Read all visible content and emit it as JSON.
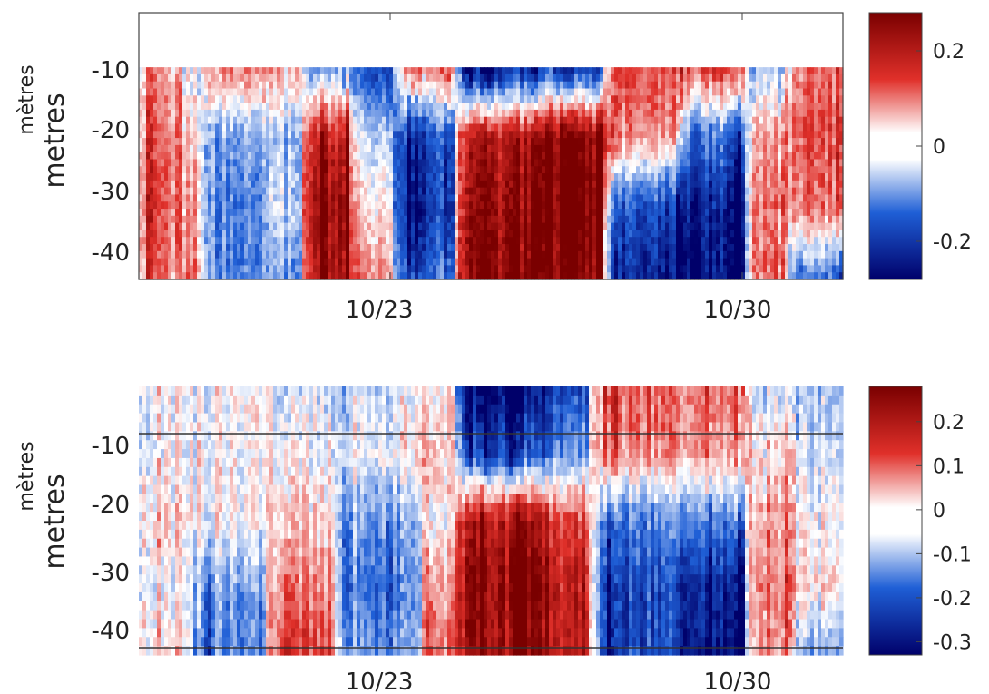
{
  "chart_data": [
    {
      "type": "heatmap",
      "panel": "top",
      "ylabel_fr": "mètres",
      "ylabel_en": "metres",
      "yticks": [
        "-10",
        "-20",
        "-30",
        "-40"
      ],
      "ytick_values": [
        -10,
        -20,
        -30,
        -40
      ],
      "xticks": [
        "10/23",
        "10/30"
      ],
      "x_range": [
        "10/18",
        "10/31"
      ],
      "y_range": [
        -44,
        0
      ],
      "data_depth_range": [
        -44,
        -9
      ],
      "colorbar": {
        "ticks": [
          "0.2",
          "0",
          "-0.2"
        ],
        "tick_values": [
          0.2,
          0,
          -0.2
        ],
        "range": [
          -0.28,
          0.28
        ],
        "colors": [
          "#00006a",
          "#1f5fd6",
          "#ffffff",
          "#e0302a",
          "#7a0000"
        ]
      },
      "time_segments": [
        {
          "t": [
            0.0,
            0.06
          ],
          "profile": [
            0.2,
            0.3,
            0.4,
            0.3
          ]
        },
        {
          "t": [
            0.06,
            0.09
          ],
          "profile": [
            -0.1,
            0.1,
            0.2,
            0.3
          ]
        },
        {
          "t": [
            0.09,
            0.18
          ],
          "profile": [
            0.3,
            -0.3,
            -0.4,
            -0.4
          ]
        },
        {
          "t": [
            0.18,
            0.23
          ],
          "profile": [
            0.2,
            -0.2,
            -0.1,
            -0.3
          ]
        },
        {
          "t": [
            0.23,
            0.3
          ],
          "profile": [
            -0.3,
            0.6,
            0.8,
            0.7
          ]
        },
        {
          "t": [
            0.3,
            0.36
          ],
          "profile": [
            -0.6,
            -0.1,
            0.1,
            0.3
          ]
        },
        {
          "t": [
            0.36,
            0.45
          ],
          "profile": [
            0.3,
            -0.6,
            -0.7,
            -0.5
          ]
        },
        {
          "t": [
            0.45,
            0.56
          ],
          "profile": [
            -0.8,
            0.7,
            0.85,
            0.9
          ]
        },
        {
          "t": [
            0.56,
            0.66
          ],
          "profile": [
            -0.7,
            0.9,
            0.95,
            0.9
          ]
        },
        {
          "t": [
            0.66,
            0.77
          ],
          "profile": [
            0.4,
            0.2,
            -0.7,
            -0.9
          ]
        },
        {
          "t": [
            0.77,
            0.86
          ],
          "profile": [
            0.5,
            -0.5,
            -0.85,
            -0.95
          ]
        },
        {
          "t": [
            0.86,
            0.92
          ],
          "profile": [
            -0.2,
            0.2,
            0.3,
            0.3
          ]
        },
        {
          "t": [
            0.92,
            1.0
          ],
          "profile": [
            0.3,
            0.4,
            0.3,
            -0.5
          ]
        }
      ]
    },
    {
      "type": "heatmap",
      "panel": "bottom",
      "ylabel_fr": "mètres",
      "ylabel_en": "metres",
      "yticks": [
        "-10",
        "-20",
        "-30",
        "-40"
      ],
      "ytick_values": [
        -10,
        -20,
        -30,
        -40
      ],
      "xticks": [
        "10/23",
        "10/30"
      ],
      "x_range": [
        "10/18",
        "10/31"
      ],
      "y_range": [
        -45,
        0
      ],
      "data_depth_range": [
        -45,
        0
      ],
      "hlines": [
        -9.5,
        -43.5
      ],
      "colorbar": {
        "ticks": [
          "0.2",
          "0.1",
          "0",
          "-0.1",
          "-0.2",
          "-0.3"
        ],
        "tick_values": [
          0.2,
          0.1,
          0,
          -0.1,
          -0.2,
          -0.3
        ],
        "range": [
          -0.33,
          0.28
        ],
        "colors": [
          "#00006a",
          "#1f5fd6",
          "#ffffff",
          "#e0302a",
          "#7a0000"
        ]
      },
      "time_segments": [
        {
          "t": [
            0.0,
            0.07
          ],
          "profile": [
            0.0,
            0.0,
            0.1,
            0.0,
            0.1
          ]
        },
        {
          "t": [
            0.07,
            0.18
          ],
          "profile": [
            0.0,
            0.0,
            0.0,
            -0.3,
            -0.4
          ]
        },
        {
          "t": [
            0.18,
            0.28
          ],
          "profile": [
            -0.1,
            0.0,
            0.1,
            0.3,
            0.5
          ]
        },
        {
          "t": [
            0.28,
            0.4
          ],
          "profile": [
            -0.1,
            0.0,
            -0.3,
            -0.4,
            -0.3
          ]
        },
        {
          "t": [
            0.4,
            0.45
          ],
          "profile": [
            0.0,
            0.1,
            0.0,
            0.2,
            0.3
          ]
        },
        {
          "t": [
            0.45,
            0.58
          ],
          "profile": [
            -0.95,
            -0.6,
            0.7,
            0.9,
            0.8
          ]
        },
        {
          "t": [
            0.58,
            0.64
          ],
          "profile": [
            -0.6,
            -0.3,
            0.5,
            0.7,
            0.7
          ]
        },
        {
          "t": [
            0.64,
            0.76
          ],
          "profile": [
            0.4,
            0.3,
            -0.4,
            -0.6,
            -0.6
          ]
        },
        {
          "t": [
            0.76,
            0.86
          ],
          "profile": [
            0.3,
            0.2,
            -0.4,
            -0.8,
            -0.9
          ]
        },
        {
          "t": [
            0.86,
            0.93
          ],
          "profile": [
            -0.1,
            0.1,
            0.2,
            0.3,
            0.2
          ]
        },
        {
          "t": [
            0.93,
            1.0
          ],
          "profile": [
            -0.2,
            -0.1,
            0.0,
            0.1,
            -0.3
          ]
        }
      ]
    }
  ]
}
